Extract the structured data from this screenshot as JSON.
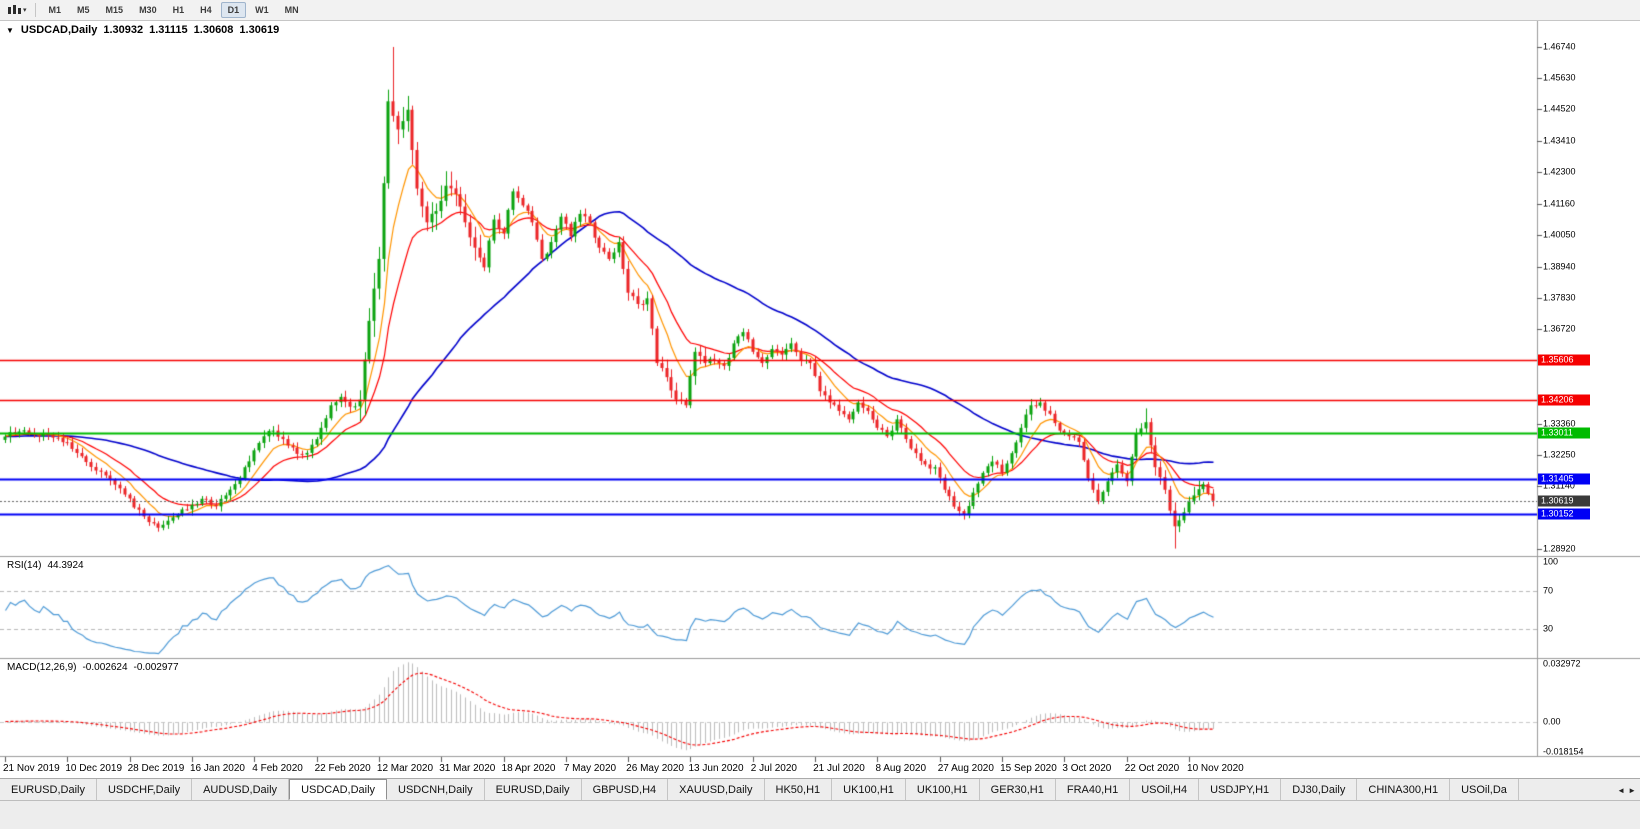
{
  "toolbar": {
    "timeframes": [
      "M1",
      "M5",
      "M15",
      "M30",
      "H1",
      "H4",
      "D1",
      "W1",
      "MN"
    ],
    "active_timeframe": "D1"
  },
  "chart_header": {
    "menu_icon": "▼",
    "symbol": "USDCAD,Daily",
    "open": "1.30932",
    "high": "1.31115",
    "low": "1.30608",
    "close": "1.30619"
  },
  "indicators": {
    "rsi": {
      "label": "RSI(14)",
      "value": "44.3924",
      "scale_labels": [
        "100",
        "70",
        "30"
      ],
      "scale_values": [
        100,
        70,
        30
      ]
    },
    "macd": {
      "label": "MACD(12,26,9)",
      "value_main": "-0.002624",
      "value_signal": "-0.002977",
      "scale_labels": [
        "0.032972",
        "0.00",
        "-0.018154"
      ],
      "scale_values": [
        0.032972,
        0,
        -0.018154
      ]
    }
  },
  "price_scale": {
    "labels": [
      "1.46740",
      "1.45630",
      "1.44520",
      "1.43410",
      "1.42300",
      "1.41160",
      "1.40050",
      "1.38940",
      "1.37830",
      "1.36720",
      "1.33360",
      "1.32250",
      "1.31140",
      "1.28920"
    ],
    "badges": [
      {
        "text": "1.35606",
        "color": "#f50000",
        "name": "hline-badge-resistance-upper"
      },
      {
        "text": "1.34206",
        "color": "#f50000",
        "name": "hline-badge-resistance-lower"
      },
      {
        "text": "1.33011",
        "color": "#00bb00",
        "name": "hline-badge-pivot"
      },
      {
        "text": "1.31405",
        "color": "#0000f5",
        "name": "hline-badge-support-upper"
      },
      {
        "text": "1.30619",
        "color": "#3a3a3a",
        "name": "current-price-badge"
      },
      {
        "text": "1.30152",
        "color": "#0000f5",
        "name": "hline-badge-support-lower"
      }
    ]
  },
  "date_axis": {
    "labels": [
      "21 Nov 2019",
      "10 Dec 2019",
      "28 Dec 2019",
      "16 Jan 2020",
      "4 Feb 2020",
      "22 Feb 2020",
      "12 Mar 2020",
      "31 Mar 2020",
      "18 Apr 2020",
      "7 May 2020",
      "26 May 2020",
      "13 Jun 2020",
      "2 Jul 2020",
      "21 Jul 2020",
      "8 Aug 2020",
      "27 Aug 2020",
      "15 Sep 2020",
      "3 Oct 2020",
      "22 Oct 2020",
      "10 Nov 2020"
    ]
  },
  "tabs": {
    "items": [
      "EURUSD,Daily",
      "USDCHF,Daily",
      "AUDUSD,Daily",
      "USDCAD,Daily",
      "USDCNH,Daily",
      "EURUSD,Daily",
      "GBPUSD,H4",
      "XAUUSD,Daily",
      "HK50,H1",
      "UK100,H1",
      "UK100,H1",
      "GER30,H1",
      "FRA40,H1",
      "USOil,H4",
      "USDJPY,H1",
      "DJ30,Daily",
      "CHINA300,H1",
      "USOil,Da"
    ],
    "active_index": 3,
    "scroll_left_icon": "◄",
    "scroll_right_icon": "►"
  },
  "chart_data": {
    "type": "candlestick",
    "symbol": "USDCAD",
    "timeframe": "Daily",
    "ylim": [
      1.28656,
      1.47663
    ],
    "plot": {
      "x0": 5,
      "x_last": 1213,
      "candles_total": 253,
      "label_every": 13
    },
    "closes_2day": [
      1.329,
      1.3301,
      1.3312,
      1.3295,
      1.3302,
      1.3286,
      1.327,
      1.3246,
      1.322,
      1.3182,
      1.3165,
      1.3136,
      1.3106,
      1.307,
      1.303,
      1.2986,
      1.2966,
      1.2991,
      1.3011,
      1.3031,
      1.3051,
      1.3066,
      1.3042,
      1.3081,
      1.3121,
      1.3181,
      1.3241,
      1.3291,
      1.3311,
      1.3281,
      1.3251,
      1.3226,
      1.3261,
      1.3321,
      1.3401,
      1.3431,
      1.3396,
      1.3421,
      1.3701,
      1.3921,
      1.4481,
      1.4381,
      1.4451,
      1.4171,
      1.4051,
      1.4091,
      1.4181,
      1.4151,
      1.4051,
      1.3961,
      1.3891,
      1.4061,
      1.4011,
      1.4161,
      1.4111,
      1.4051,
      1.3921,
      1.3981,
      1.4071,
      1.4001,
      1.4081,
      1.4051,
      1.3961,
      1.3921,
      1.3981,
      1.3801,
      1.3761,
      1.3781,
      1.3551,
      1.3501,
      1.3421,
      1.3401,
      1.3591,
      1.3551,
      1.3561,
      1.3541,
      1.3621,
      1.3661,
      1.3591,
      1.3551,
      1.3601,
      1.3581,
      1.3621,
      1.3561,
      1.3551,
      1.3451,
      1.3411,
      1.3381,
      1.3351,
      1.3411,
      1.3381,
      1.3321,
      1.3291,
      1.3351,
      1.3281,
      1.3231,
      1.3191,
      1.3181,
      1.3101,
      1.3041,
      1.3011,
      1.3091,
      1.3161,
      1.3201,
      1.3161,
      1.3231,
      1.3321,
      1.3401,
      1.3411,
      1.3371,
      1.3311,
      1.3291,
      1.3271,
      1.3141,
      1.3061,
      1.3131,
      1.3191,
      1.3131,
      1.3301,
      1.3341,
      1.3181,
      1.3101,
      1.2971,
      1.3021,
      1.3081,
      1.3121,
      1.30619
    ],
    "overrides": [
      [
        81,
        "h",
        1.4674
      ],
      [
        32,
        "l",
        1.2952
      ],
      [
        200,
        "l",
        1.2995
      ],
      [
        244,
        "l",
        1.2892
      ],
      [
        238,
        "h",
        1.339
      ]
    ],
    "volatility_windows": [
      [
        74,
        100,
        2.6
      ],
      [
        128,
        146,
        1.5
      ],
      [
        238,
        250,
        1.4
      ]
    ],
    "candle_colors": {
      "up": "#0aa30e",
      "down": "#ec2427"
    },
    "moving_averages": [
      {
        "type": "ema",
        "period": 8,
        "color": "#ff9500"
      },
      {
        "type": "ema",
        "period": 17,
        "color": "#ff0000"
      },
      {
        "type": "sma",
        "period": 50,
        "color": "#0000cc"
      }
    ],
    "hlines": [
      {
        "value": 1.35606,
        "color": "#f50000",
        "width": 1.5
      },
      {
        "value": 1.34206,
        "color": "#f50000",
        "width": 1.5
      },
      {
        "value": 1.33011,
        "color": "#00bb00",
        "width": 2
      },
      {
        "value": 1.31405,
        "color": "#0000f5",
        "width": 2
      },
      {
        "value": 1.30152,
        "color": "#0000f5",
        "width": 2
      }
    ],
    "bid_line": {
      "value": 1.30619,
      "color": "#666666"
    },
    "rsi": {
      "period": 14,
      "color": "#4f9bd7",
      "range_max": 105,
      "levels": [
        70,
        30
      ]
    },
    "macd": {
      "fast": 12,
      "slow": 26,
      "signal": 9,
      "scale": [
        -0.018154,
        0.032972
      ],
      "hist_color": "#bdbdbd",
      "signal_color": "#f50000"
    }
  }
}
